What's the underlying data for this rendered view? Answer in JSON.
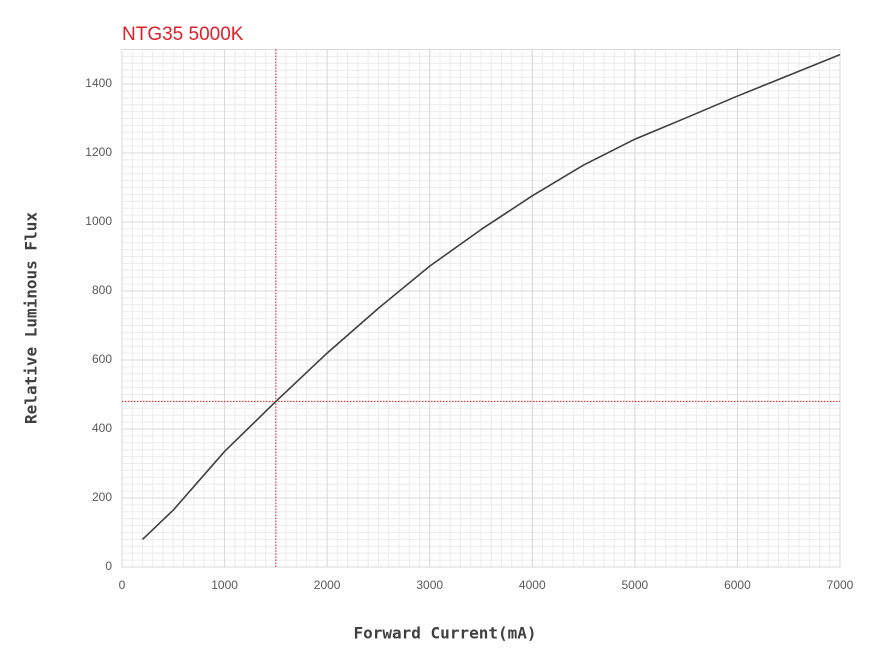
{
  "chart_data": {
    "type": "line",
    "title": "NTG35 5000K",
    "x_label": "Forward Current(mA)",
    "y_label": "Relative Luminous Flux",
    "x": [
      200,
      500,
      1000,
      1500,
      2000,
      2500,
      3000,
      3500,
      4000,
      4500,
      5000,
      5500,
      6000,
      6500,
      7000
    ],
    "series": [
      {
        "name": "NTG35 5000K",
        "color": "#404040",
        "values": [
          80,
          165,
          335,
          480,
          620,
          750,
          872,
          978,
          1076,
          1165,
          1240,
          1302,
          1365,
          1425,
          1485
        ]
      }
    ],
    "xlim": [
      0,
      7000
    ],
    "xticks": [
      0,
      1000,
      2000,
      3000,
      4000,
      5000,
      6000,
      7000
    ],
    "ylim": [
      0,
      1500
    ],
    "yticks": [
      0,
      200,
      400,
      600,
      800,
      1000,
      1200,
      1400
    ],
    "reference_x": 1500,
    "reference_y": 480,
    "reference_color": "#d62020",
    "grid": true
  }
}
